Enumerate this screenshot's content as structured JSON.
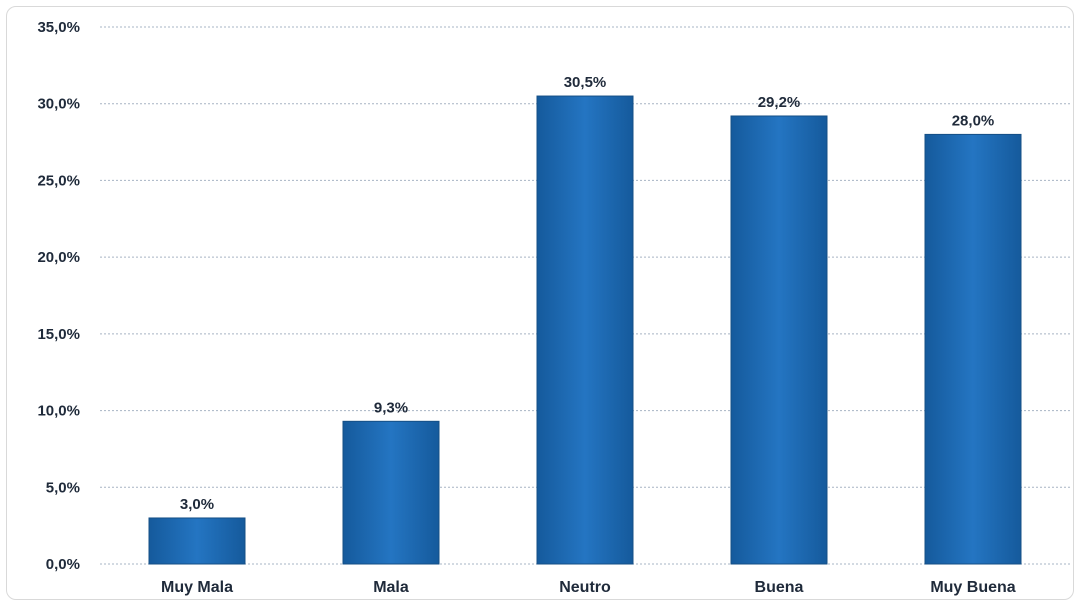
{
  "chart_data": {
    "type": "bar",
    "title": "",
    "xlabel": "",
    "ylabel": "",
    "categories": [
      "Muy Mala",
      "Mala",
      "Neutro",
      "Buena",
      "Muy Buena"
    ],
    "values": [
      3.0,
      9.3,
      30.5,
      29.2,
      28.0
    ],
    "data_labels": [
      "3,0%",
      "9,3%",
      "30,5%",
      "29,2%",
      "28,0%"
    ],
    "ylim": [
      0,
      35
    ],
    "yticks": [
      0,
      5,
      10,
      15,
      20,
      25,
      30,
      35
    ],
    "ytick_labels": [
      "0,0%",
      "5,0%",
      "10,0%",
      "15,0%",
      "20,0%",
      "25,0%",
      "30,0%",
      "35,0%"
    ],
    "grid": true,
    "legend": "none",
    "bar_color": "#1f6cb4",
    "bar_edge_color": "#154f86",
    "grid_color": "#a7b4c4"
  }
}
